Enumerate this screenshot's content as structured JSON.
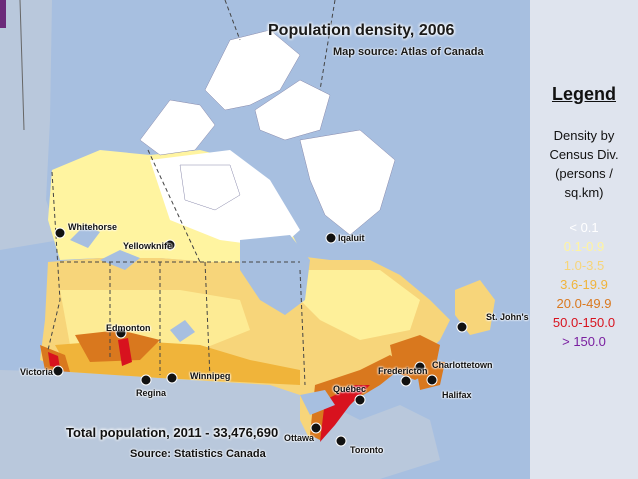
{
  "title": "Population density, 2006",
  "subtitle": "Map source: Atlas of Canada",
  "footer": {
    "total": "Total population, 2011 - 33,476,690",
    "source": "Source: Statistics Canada"
  },
  "legend": {
    "title": "Legend",
    "desc_lines": [
      "Density by",
      "Census Div.",
      "(persons /",
      "sq.km)"
    ],
    "items": [
      {
        "label": "< 0.1",
        "color": "#ffffff"
      },
      {
        "label": "0.1-0.9",
        "color": "#fff4a0"
      },
      {
        "label": "1.0-3.5",
        "color": "#f7d57a"
      },
      {
        "label": "3.6-19.9",
        "color": "#f0b43a"
      },
      {
        "label": "20.0-49.9",
        "color": "#d9781e"
      },
      {
        "label": "50.0-150.0",
        "color": "#d8121e"
      },
      {
        "label": "> 150.0",
        "color": "#7a1fa0"
      }
    ]
  },
  "cities": [
    {
      "name": "Whitehorse"
    },
    {
      "name": "Yellowknife"
    },
    {
      "name": "Iqaluit"
    },
    {
      "name": "Edmonton"
    },
    {
      "name": "Victoria"
    },
    {
      "name": "Regina"
    },
    {
      "name": "Winnipeg"
    },
    {
      "name": "Québec"
    },
    {
      "name": "Fredericton"
    },
    {
      "name": "Charlottetown"
    },
    {
      "name": "St. John's"
    },
    {
      "name": "Halifax"
    },
    {
      "name": "Ottawa"
    },
    {
      "name": "Toronto"
    }
  ]
}
